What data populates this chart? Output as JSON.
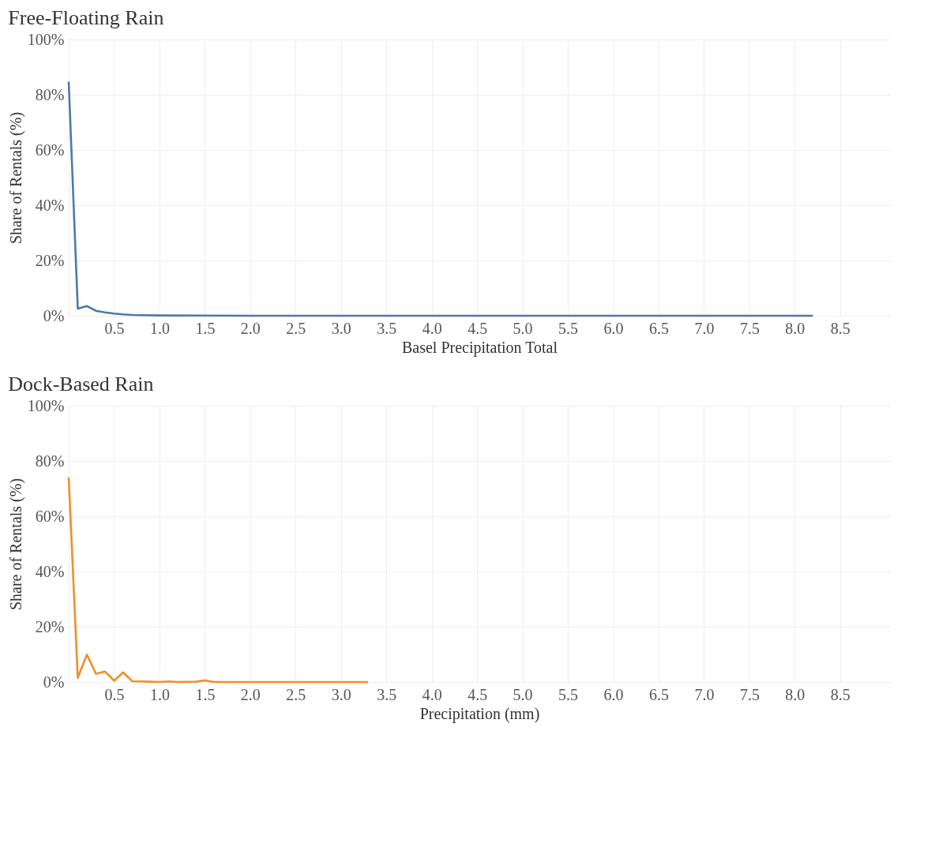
{
  "chart_data": [
    {
      "type": "line",
      "title": "Free-Floating Rain",
      "xlabel": "Basel Precipitation Total",
      "ylabel": "Share of Rentals (%)",
      "series": [
        {
          "color": "#4e79a7",
          "x": [
            0,
            0.1,
            0.2,
            0.3,
            0.4,
            0.5,
            0.6,
            0.7,
            0.8,
            1.0,
            2.0,
            8.2
          ],
          "values": [
            84.7,
            2.6,
            3.5,
            1.8,
            1.2,
            0.8,
            0.5,
            0.3,
            0.2,
            0.1,
            0,
            0
          ]
        }
      ],
      "xlim": [
        0,
        9.05
      ],
      "xticks": [
        {
          "value": 0,
          "label": null
        },
        0.5,
        {
          "value": 1,
          "label": "1.0"
        },
        1.5,
        {
          "value": 2,
          "label": "2.0"
        },
        2.5,
        {
          "value": 3,
          "label": "3.0"
        },
        3.5,
        {
          "value": 4,
          "label": "4.0"
        },
        4.5,
        {
          "value": 5,
          "label": "5.0"
        },
        5.5,
        {
          "value": 6,
          "label": "6.0"
        },
        6.5,
        {
          "value": 7,
          "label": "7.0"
        },
        7.5,
        {
          "value": 8,
          "label": "8.0"
        },
        8.5
      ],
      "ylim": [
        0,
        100
      ],
      "yticks": [
        {
          "value": 0,
          "label": "0%"
        },
        {
          "value": 20,
          "label": "20%"
        },
        {
          "value": 40,
          "label": "40%"
        },
        {
          "value": 60,
          "label": "60%"
        },
        {
          "value": 80,
          "label": "80%"
        },
        {
          "value": 100,
          "label": "100%"
        }
      ],
      "grid": true,
      "line_style": "solid",
      "marker": "none"
    },
    {
      "type": "line",
      "title": "Dock-Based Rain",
      "xlabel": "Precipitation (mm)",
      "ylabel": "Share of Rentals (%)",
      "series": [
        {
          "color": "#f28e2b",
          "x": [
            0,
            0.1,
            0.2,
            0.3,
            0.4,
            0.5,
            0.6,
            0.7,
            0.8,
            0.9,
            1.0,
            1.1,
            1.2,
            1.4,
            1.5,
            1.6,
            2.0,
            3.3
          ],
          "values": [
            74.1,
            1.5,
            9.9,
            3.0,
            3.8,
            0.5,
            3.5,
            0.3,
            0.2,
            0.1,
            0,
            0.2,
            0,
            0.1,
            0.6,
            0,
            0,
            0
          ]
        }
      ],
      "xlim": [
        0,
        9.05
      ],
      "xticks": [
        {
          "value": 0,
          "label": null
        },
        0.5,
        {
          "value": 1,
          "label": "1.0"
        },
        1.5,
        {
          "value": 2,
          "label": "2.0"
        },
        2.5,
        {
          "value": 3,
          "label": "3.0"
        },
        3.5,
        {
          "value": 4,
          "label": "4.0"
        },
        4.5,
        {
          "value": 5,
          "label": "5.0"
        },
        5.5,
        {
          "value": 6,
          "label": "6.0"
        },
        6.5,
        {
          "value": 7,
          "label": "7.0"
        },
        7.5,
        {
          "value": 8,
          "label": "8.0"
        },
        8.5
      ],
      "ylim": [
        0,
        100
      ],
      "yticks": [
        {
          "value": 0,
          "label": "0%"
        },
        {
          "value": 20,
          "label": "20%"
        },
        {
          "value": 40,
          "label": "40%"
        },
        {
          "value": 60,
          "label": "60%"
        },
        {
          "value": 80,
          "label": "80%"
        },
        {
          "value": 100,
          "label": "100%"
        }
      ],
      "grid": true,
      "line_style": "solid",
      "marker": "none"
    }
  ]
}
